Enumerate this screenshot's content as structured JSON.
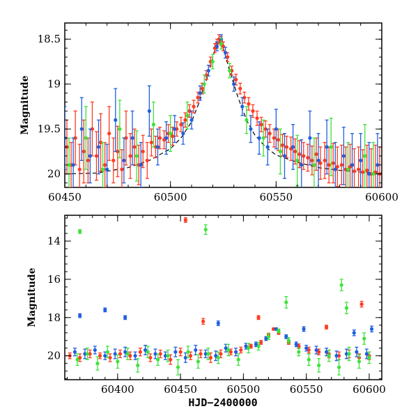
{
  "chart_data": [
    {
      "type": "scatter",
      "title": "",
      "xlabel": "",
      "ylabel": "Magnitude",
      "xlim": [
        60450,
        60600
      ],
      "ylim": [
        20.15,
        18.32
      ],
      "y_inverted": true,
      "xticks": [
        60450,
        60500,
        60550,
        60600
      ],
      "yticks": [
        18.5,
        19,
        19.5,
        20
      ],
      "ytick_labels": [
        "18.5",
        "19",
        "19.5",
        "20"
      ],
      "model_curve": {
        "color": "#000000",
        "style": "dashed",
        "x": [
          60450,
          60465,
          60480,
          60490,
          60500,
          60505,
          60510,
          60514,
          60518,
          60521,
          60523,
          60525,
          60528,
          60532,
          60536,
          60540,
          60545,
          60550,
          60560,
          60570,
          60580,
          60590,
          60600
        ],
        "y": [
          20.0,
          19.99,
          19.93,
          19.85,
          19.72,
          19.6,
          19.42,
          19.18,
          18.88,
          18.62,
          18.52,
          18.6,
          18.85,
          19.15,
          19.4,
          19.57,
          19.7,
          19.79,
          19.87,
          19.93,
          19.96,
          19.98,
          19.99
        ]
      },
      "series": [
        {
          "color": "#ff3a1f",
          "x": [
            60451,
            60453,
            60455,
            60457,
            60459,
            60461,
            60463,
            60465,
            60467,
            60469,
            60471,
            60473,
            60475,
            60477,
            60479,
            60481,
            60483,
            60485,
            60487,
            60489,
            60491,
            60493,
            60495,
            60497,
            60499,
            60501,
            60503,
            60505,
            60507,
            60509,
            60511,
            60513,
            60515,
            60517,
            60519,
            60521,
            60522,
            60523,
            60524,
            60525,
            60527,
            60529,
            60531,
            60533,
            60535,
            60537,
            60539,
            60541,
            60543,
            60545,
            60547,
            60549,
            60551,
            60553,
            60555,
            60557,
            60559,
            60561,
            60563,
            60565,
            60567,
            60569,
            60571,
            60573,
            60575,
            60577,
            60579,
            60581,
            60583,
            60585,
            60587,
            60589,
            60591,
            60593,
            60595,
            60597,
            60599
          ],
          "y": [
            19.7,
            19.9,
            19.6,
            19.95,
            19.75,
            19.85,
            19.5,
            19.8,
            19.65,
            19.9,
            19.55,
            19.85,
            19.75,
            19.95,
            19.6,
            19.8,
            19.7,
            19.9,
            19.75,
            19.85,
            19.65,
            19.7,
            19.6,
            19.62,
            19.55,
            19.58,
            19.5,
            19.45,
            19.4,
            19.3,
            19.25,
            19.15,
            19.05,
            18.9,
            18.75,
            18.6,
            18.55,
            18.5,
            18.52,
            18.58,
            18.7,
            18.85,
            18.95,
            19.05,
            19.15,
            19.22,
            19.3,
            19.38,
            19.45,
            19.5,
            19.55,
            19.6,
            19.62,
            19.68,
            19.7,
            19.72,
            19.75,
            19.78,
            19.8,
            19.82,
            19.85,
            19.78,
            19.88,
            19.85,
            19.9,
            19.88,
            19.92,
            19.9,
            19.95,
            19.92,
            19.97,
            19.95,
            19.98,
            19.96,
            20.0,
            19.98,
            20.0
          ],
          "yerr": [
            0.3,
            0.25,
            0.3,
            0.28,
            0.35,
            0.25,
            0.3,
            0.27,
            0.32,
            0.25,
            0.3,
            0.25,
            0.28,
            0.22,
            0.3,
            0.25,
            0.2,
            0.22,
            0.18,
            0.2,
            0.15,
            0.12,
            0.12,
            0.1,
            0.1,
            0.1,
            0.08,
            0.08,
            0.08,
            0.07,
            0.07,
            0.06,
            0.06,
            0.05,
            0.05,
            0.05,
            0.05,
            0.05,
            0.05,
            0.05,
            0.05,
            0.05,
            0.06,
            0.06,
            0.06,
            0.07,
            0.07,
            0.08,
            0.08,
            0.09,
            0.1,
            0.1,
            0.12,
            0.12,
            0.12,
            0.13,
            0.14,
            0.15,
            0.15,
            0.15,
            0.16,
            0.18,
            0.18,
            0.2,
            0.2,
            0.22,
            0.22,
            0.22,
            0.25,
            0.25,
            0.25,
            0.25,
            0.25,
            0.28,
            0.28,
            0.3,
            0.3
          ]
        },
        {
          "color": "#1f5fe0",
          "x": [
            60450,
            60454,
            60458,
            60462,
            60466,
            60470,
            60474,
            60478,
            60482,
            60486,
            60490,
            60494,
            60498,
            60502,
            60506,
            60510,
            60514,
            60518,
            60522,
            60524,
            60526,
            60530,
            60534,
            60538,
            60542,
            60546,
            60550,
            60554,
            60558,
            60562,
            60566,
            60570,
            60574,
            60578,
            60582,
            60586,
            60590,
            60594,
            60598
          ],
          "y": [
            19.6,
            19.9,
            19.5,
            19.8,
            19.7,
            19.95,
            19.4,
            19.85,
            19.6,
            19.9,
            19.3,
            19.7,
            19.6,
            19.5,
            19.55,
            19.4,
            19.1,
            18.85,
            18.58,
            18.5,
            18.65,
            19.0,
            19.25,
            19.5,
            19.6,
            19.7,
            19.5,
            19.8,
            19.7,
            19.9,
            19.6,
            19.85,
            19.7,
            19.95,
            19.8,
            19.9,
            19.85,
            20.0,
            19.9
          ],
          "yerr": [
            0.35,
            0.3,
            0.35,
            0.3,
            0.3,
            0.28,
            0.35,
            0.25,
            0.3,
            0.25,
            0.28,
            0.2,
            0.18,
            0.15,
            0.12,
            0.1,
            0.08,
            0.06,
            0.05,
            0.05,
            0.06,
            0.08,
            0.1,
            0.15,
            0.18,
            0.2,
            0.22,
            0.25,
            0.25,
            0.28,
            0.3,
            0.3,
            0.3,
            0.3,
            0.32,
            0.35,
            0.3,
            0.35,
            0.35
          ]
        },
        {
          "color": "#3de23a",
          "x": [
            60452,
            60460,
            60468,
            60476,
            60484,
            60492,
            60500,
            60508,
            60516,
            60520,
            60524,
            60528,
            60536,
            60544,
            60552,
            60560,
            60568,
            60576,
            60584,
            60592,
            60596
          ],
          "y": [
            19.9,
            19.6,
            19.95,
            19.5,
            19.8,
            19.45,
            19.55,
            19.35,
            19.0,
            18.75,
            18.55,
            18.85,
            19.4,
            19.6,
            19.75,
            19.85,
            19.9,
            19.7,
            19.95,
            19.8,
            20.0
          ],
          "yerr": [
            0.3,
            0.35,
            0.3,
            0.32,
            0.28,
            0.25,
            0.2,
            0.15,
            0.1,
            0.08,
            0.06,
            0.08,
            0.15,
            0.2,
            0.25,
            0.28,
            0.3,
            0.32,
            0.3,
            0.35,
            0.35
          ]
        }
      ]
    },
    {
      "type": "scatter",
      "title": "",
      "xlabel": "HJD−2400000",
      "ylabel": "Magnitude",
      "xlim": [
        60358,
        60610
      ],
      "ylim": [
        21.25,
        12.65
      ],
      "y_inverted": true,
      "xticks": [
        60400,
        60450,
        60500,
        60550,
        60600
      ],
      "yticks": [
        14,
        16,
        18,
        20
      ],
      "ytick_labels": [
        "14",
        "16",
        "18",
        "20"
      ],
      "series": [
        {
          "color": "#ff3a1f",
          "x": [
            60362,
            60370,
            60378,
            60386,
            60394,
            60402,
            60410,
            60418,
            60426,
            60434,
            60442,
            60450,
            60458,
            60466,
            60474,
            60482,
            60490,
            60498,
            60506,
            60514,
            60520,
            60524,
            60528,
            60536,
            60544,
            60552,
            60560,
            60568,
            60576,
            60584,
            60592,
            60600,
            60454,
            60468,
            60512,
            60566,
            60594
          ],
          "y": [
            20.0,
            20.1,
            19.9,
            20.0,
            20.1,
            19.9,
            20.0,
            19.8,
            20.1,
            19.9,
            20.2,
            19.8,
            20.0,
            19.9,
            20.1,
            19.9,
            19.8,
            19.7,
            19.5,
            19.3,
            18.9,
            18.6,
            18.8,
            19.3,
            19.5,
            19.7,
            19.8,
            19.9,
            20.0,
            19.9,
            20.1,
            20.0,
            12.9,
            18.2,
            18.0,
            18.5,
            17.3
          ],
          "yerr": [
            0.15,
            0.2,
            0.2,
            0.15,
            0.2,
            0.2,
            0.2,
            0.2,
            0.2,
            0.2,
            0.25,
            0.2,
            0.2,
            0.2,
            0.25,
            0.2,
            0.15,
            0.15,
            0.1,
            0.1,
            0.08,
            0.06,
            0.08,
            0.1,
            0.12,
            0.15,
            0.15,
            0.2,
            0.2,
            0.2,
            0.2,
            0.2,
            0.12,
            0.15,
            0.1,
            0.1,
            0.15
          ]
        },
        {
          "color": "#1f5fe0",
          "x": [
            60366,
            60374,
            60382,
            60390,
            60398,
            60406,
            60414,
            60422,
            60430,
            60438,
            60446,
            60454,
            60462,
            60470,
            60478,
            60486,
            60494,
            60502,
            60510,
            60518,
            60526,
            60534,
            60542,
            60550,
            60558,
            60566,
            60574,
            60582,
            60590,
            60598,
            60370,
            60390,
            60406,
            60480,
            60548,
            60588,
            60602
          ],
          "y": [
            19.8,
            19.9,
            19.7,
            20.0,
            19.9,
            19.8,
            20.0,
            19.7,
            19.9,
            20.0,
            19.8,
            20.1,
            19.7,
            19.9,
            20.0,
            19.6,
            19.8,
            19.5,
            19.4,
            19.1,
            18.6,
            19.0,
            19.4,
            19.6,
            19.7,
            19.8,
            20.0,
            19.9,
            19.8,
            19.9,
            17.9,
            17.6,
            18.0,
            18.3,
            18.6,
            18.8,
            18.6
          ],
          "yerr": [
            0.2,
            0.25,
            0.2,
            0.2,
            0.25,
            0.25,
            0.2,
            0.25,
            0.25,
            0.2,
            0.25,
            0.25,
            0.25,
            0.2,
            0.25,
            0.2,
            0.2,
            0.15,
            0.12,
            0.1,
            0.06,
            0.1,
            0.12,
            0.15,
            0.2,
            0.2,
            0.25,
            0.25,
            0.25,
            0.25,
            0.1,
            0.1,
            0.1,
            0.12,
            0.12,
            0.15,
            0.15
          ]
        },
        {
          "color": "#3de23a",
          "x": [
            60368,
            60376,
            60384,
            60392,
            60400,
            60408,
            60416,
            60424,
            60432,
            60440,
            60448,
            60456,
            60464,
            60472,
            60480,
            60488,
            60496,
            60504,
            60512,
            60520,
            60528,
            60536,
            60544,
            60552,
            60560,
            60568,
            60576,
            60584,
            60592,
            60600,
            60370,
            60470,
            60534,
            60578,
            60582,
            60596
          ],
          "y": [
            20.2,
            19.9,
            20.4,
            19.8,
            20.3,
            19.9,
            20.5,
            19.8,
            20.2,
            20.0,
            20.6,
            19.8,
            20.3,
            19.9,
            20.1,
            19.7,
            20.2,
            19.6,
            19.5,
            19.0,
            18.7,
            19.2,
            19.8,
            20.2,
            20.5,
            20.0,
            20.6,
            19.9,
            20.3,
            20.1,
            13.5,
            13.4,
            17.2,
            16.3,
            17.5,
            19.1
          ],
          "yerr": [
            0.3,
            0.3,
            0.35,
            0.3,
            0.35,
            0.3,
            0.35,
            0.3,
            0.3,
            0.3,
            0.4,
            0.3,
            0.35,
            0.3,
            0.3,
            0.3,
            0.3,
            0.25,
            0.2,
            0.15,
            0.1,
            0.15,
            0.2,
            0.3,
            0.35,
            0.3,
            0.4,
            0.35,
            0.35,
            0.3,
            0.1,
            0.25,
            0.3,
            0.3,
            0.3,
            0.3
          ]
        }
      ]
    }
  ]
}
